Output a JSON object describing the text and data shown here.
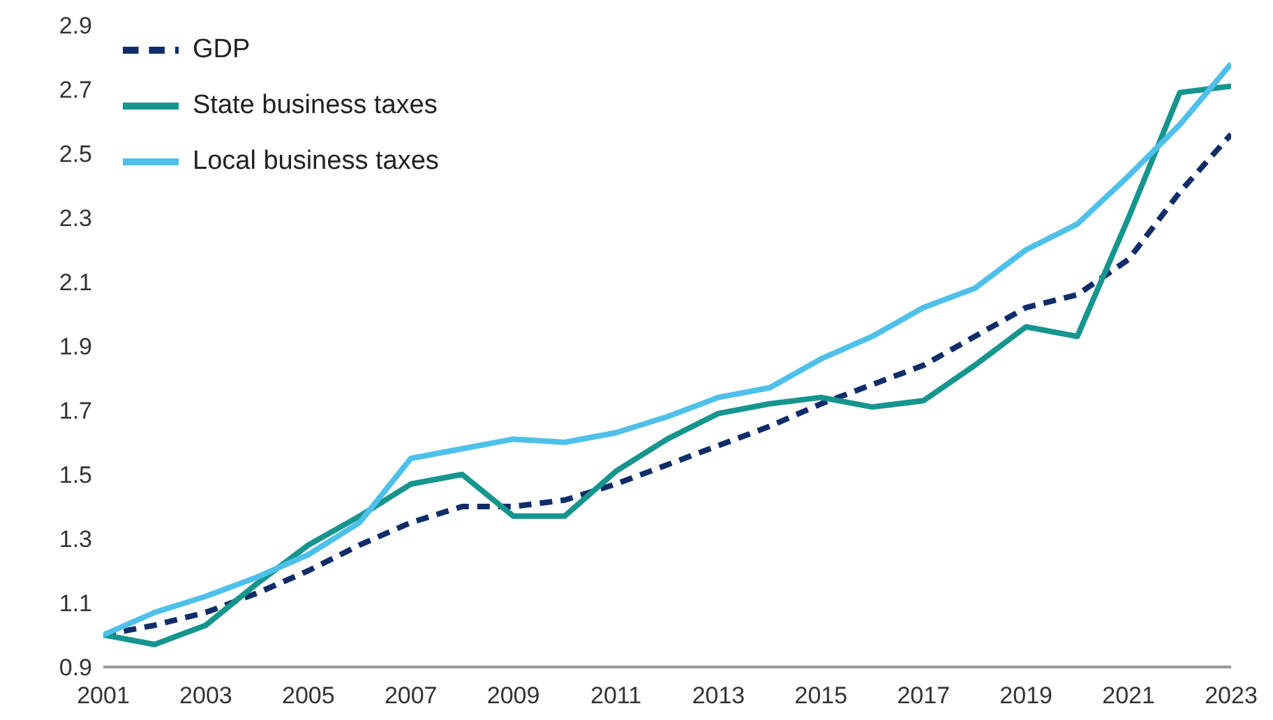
{
  "chart_data": {
    "type": "line",
    "x": [
      2001,
      2002,
      2003,
      2004,
      2005,
      2006,
      2007,
      2008,
      2009,
      2010,
      2011,
      2012,
      2013,
      2014,
      2015,
      2016,
      2017,
      2018,
      2019,
      2020,
      2021,
      2022,
      2023
    ],
    "series": [
      {
        "name": "GDP",
        "color": "#0f2d69",
        "line_style": "dashed",
        "values": [
          1.0,
          1.03,
          1.07,
          1.13,
          1.2,
          1.28,
          1.35,
          1.4,
          1.4,
          1.42,
          1.47,
          1.53,
          1.59,
          1.65,
          1.72,
          1.78,
          1.84,
          1.93,
          2.02,
          2.06,
          2.17,
          2.38,
          2.56
        ]
      },
      {
        "name": "State business taxes",
        "color": "#16958f",
        "line_style": "solid",
        "values": [
          1.0,
          0.97,
          1.03,
          1.16,
          1.28,
          1.37,
          1.47,
          1.5,
          1.37,
          1.37,
          1.51,
          1.61,
          1.69,
          1.72,
          1.74,
          1.71,
          1.73,
          1.84,
          1.96,
          1.93,
          2.3,
          2.69,
          2.71
        ]
      },
      {
        "name": "Local business taxes",
        "color": "#4ec0ea",
        "line_style": "solid",
        "values": [
          1.0,
          1.07,
          1.12,
          1.18,
          1.25,
          1.35,
          1.55,
          1.58,
          1.61,
          1.6,
          1.63,
          1.68,
          1.74,
          1.77,
          1.86,
          1.93,
          2.02,
          2.08,
          2.2,
          2.28,
          2.43,
          2.59,
          2.78
        ]
      }
    ],
    "xlim": [
      2001,
      2023
    ],
    "xticks": [
      2001,
      2003,
      2005,
      2007,
      2009,
      2011,
      2013,
      2015,
      2017,
      2019,
      2021,
      2023
    ],
    "ylim": [
      0.9,
      2.9
    ],
    "yticks": [
      0.9,
      1.1,
      1.3,
      1.5,
      1.7,
      1.9,
      2.1,
      2.3,
      2.5,
      2.7,
      2.9
    ],
    "grid": false,
    "legend": "top left",
    "marker": "none"
  }
}
